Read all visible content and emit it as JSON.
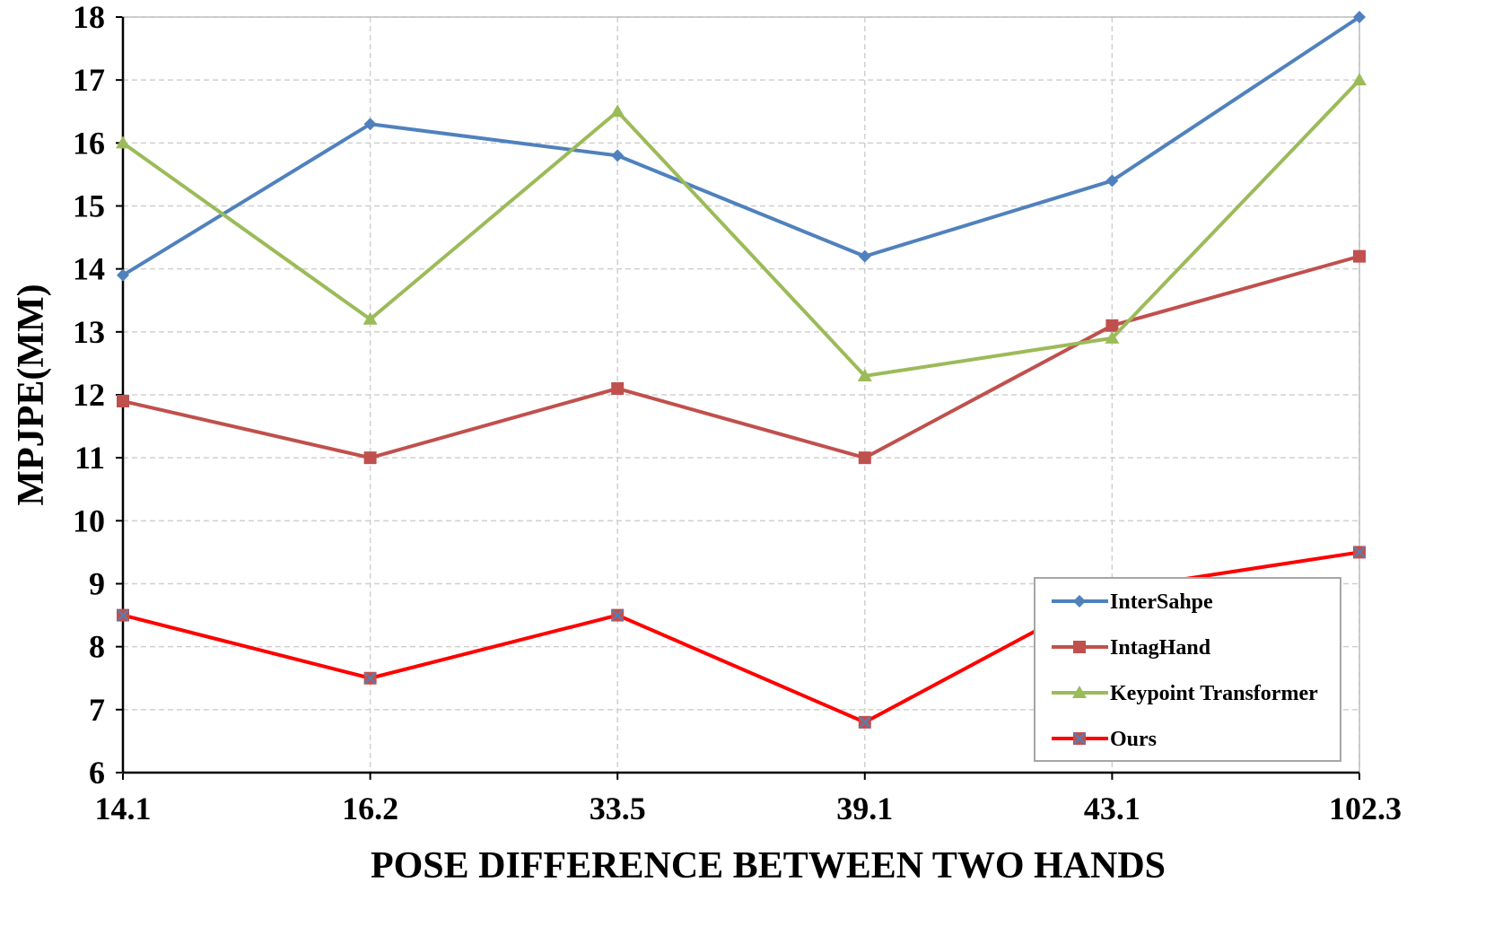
{
  "chart_data": {
    "type": "line",
    "xlabel": "POSE DIFFERENCE BETWEEN TWO HANDS",
    "ylabel": "MPJPE(MM)",
    "categories": [
      "14.1",
      "16.2",
      "33.5",
      "39.1",
      "43.1",
      "102.3"
    ],
    "ylim": [
      6,
      18
    ],
    "yticks": [
      6,
      7,
      8,
      9,
      10,
      11,
      12,
      13,
      14,
      15,
      16,
      17,
      18
    ],
    "grid": true,
    "legend_position": "bottom-right",
    "series": [
      {
        "name": "InterSahpe",
        "color": "#4f81bd",
        "marker": "diamond",
        "values": [
          13.9,
          16.3,
          15.8,
          14.2,
          15.4,
          18.0
        ]
      },
      {
        "name": "IntagHand",
        "color": "#c0504d",
        "marker": "square",
        "values": [
          11.9,
          11.0,
          12.1,
          11.0,
          13.1,
          14.2
        ]
      },
      {
        "name": "Keypoint Transformer",
        "color": "#9bbb59",
        "marker": "triangle",
        "values": [
          16.0,
          13.2,
          16.5,
          12.3,
          12.9,
          17.0
        ]
      },
      {
        "name": "Ours",
        "color": "#ff0000",
        "marker": "x-square",
        "values": [
          8.5,
          7.5,
          8.5,
          6.8,
          8.9,
          9.5
        ]
      }
    ]
  }
}
